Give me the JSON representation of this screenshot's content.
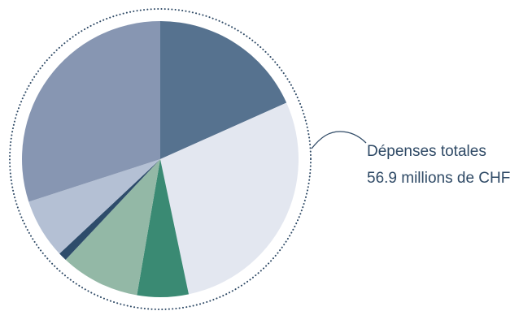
{
  "caption": {
    "title": "Dépenses totales",
    "value": "56.9 millions de CHF"
  },
  "chart_data": {
    "type": "pie",
    "title": "",
    "start_angle_deg": 0,
    "direction": "clockwise",
    "slices": [
      {
        "value": 18.3,
        "color": "#56728f"
      },
      {
        "value": 28.4,
        "color": "#e3e7f0"
      },
      {
        "value": 6.0,
        "color": "#3a8a73"
      },
      {
        "value": 9.3,
        "color": "#93b8a6"
      },
      {
        "value": 1.0,
        "color": "#2e4c6b"
      },
      {
        "value": 7.0,
        "color": "#b4c0d4"
      },
      {
        "value": 30.0,
        "color": "#8796b2"
      }
    ]
  },
  "colors": {
    "dotted_ring": "#2f4a66",
    "connector": "#2f4a66",
    "caption_text": "#2f4a66"
  }
}
